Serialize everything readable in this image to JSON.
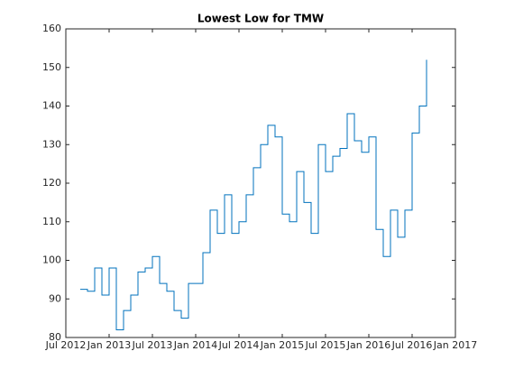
{
  "chart_data": {
    "type": "line",
    "title": "Lowest Low for TMW",
    "x": [
      "2012-09",
      "2012-10",
      "2012-11",
      "2012-12",
      "2013-01",
      "2013-02",
      "2013-03",
      "2013-04",
      "2013-05",
      "2013-06",
      "2013-07",
      "2013-08",
      "2013-09",
      "2013-10",
      "2013-11",
      "2013-12",
      "2014-01",
      "2014-02",
      "2014-03",
      "2014-04",
      "2014-05",
      "2014-06",
      "2014-07",
      "2014-08",
      "2014-09",
      "2014-10",
      "2014-11",
      "2014-12",
      "2015-01",
      "2015-02",
      "2015-03",
      "2015-04",
      "2015-05",
      "2015-06",
      "2015-07",
      "2015-08",
      "2015-09",
      "2015-10",
      "2015-11",
      "2015-12",
      "2016-01",
      "2016-02",
      "2016-03",
      "2016-04",
      "2016-05",
      "2016-06",
      "2016-07",
      "2016-08",
      "2016-09"
    ],
    "series": [
      {
        "name": "TMW",
        "color": "#0072bd",
        "values": [
          92.5,
          92,
          98,
          91,
          98,
          82,
          87,
          91,
          97,
          98,
          101,
          94,
          92,
          87,
          85,
          94,
          94,
          102,
          113,
          107,
          117,
          107,
          110,
          117,
          124,
          130,
          135,
          132,
          112,
          110,
          123,
          115,
          107,
          130,
          123,
          127,
          129,
          138,
          131,
          128,
          132,
          108,
          101,
          113,
          106,
          113,
          133,
          140,
          152
        ]
      }
    ],
    "xlim": [
      "2012-07",
      "2017-01"
    ],
    "xticks": [
      {
        "value": "2012-07",
        "label": "Jul 2012"
      },
      {
        "value": "2013-01",
        "label": "Jan 2013"
      },
      {
        "value": "2013-07",
        "label": "Jul 2013"
      },
      {
        "value": "2014-01",
        "label": "Jan 2014"
      },
      {
        "value": "2014-07",
        "label": "Jul 2014"
      },
      {
        "value": "2015-01",
        "label": "Jan 2015"
      },
      {
        "value": "2015-07",
        "label": "Jul 2015"
      },
      {
        "value": "2016-01",
        "label": "Jan 2016"
      },
      {
        "value": "2016-07",
        "label": "Jul 2016"
      },
      {
        "value": "2017-01",
        "label": "Jan 2017"
      }
    ],
    "ylim": [
      80,
      160
    ],
    "yticks": [
      80,
      90,
      100,
      110,
      120,
      130,
      140,
      150,
      160
    ]
  }
}
